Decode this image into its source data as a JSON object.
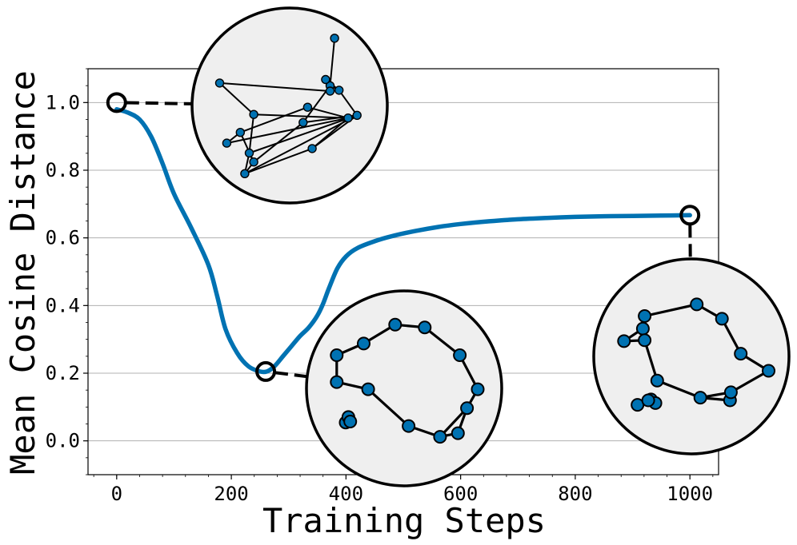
{
  "chart_data": {
    "type": "line",
    "xlabel": "Training Steps",
    "ylabel": "Mean Cosine Distance",
    "xlim": [
      -50,
      1050
    ],
    "ylim": [
      -0.1,
      1.1
    ],
    "xticks": [
      0,
      200,
      400,
      600,
      800,
      1000
    ],
    "xtick_labels": [
      "0",
      "200",
      "400",
      "600",
      "800",
      "1000"
    ],
    "yticks": [
      0.0,
      0.2,
      0.4,
      0.6,
      0.8,
      1.0
    ],
    "ytick_labels": [
      "0.0",
      "0.2",
      "0.4",
      "0.6",
      "0.8",
      "1.0"
    ],
    "grid": "horizontal",
    "series": [
      {
        "color": "#0072B2",
        "x": [
          0,
          20,
          40,
          60,
          80,
          100,
          130,
          160,
          175,
          190,
          210,
          230,
          250,
          262,
          275,
          290,
          305,
          320,
          335,
          350,
          360,
          370,
          385,
          400,
          420,
          450,
          480,
          520,
          560,
          600,
          650,
          700,
          750,
          800,
          850,
          900,
          950,
          1000
        ],
        "y": [
          0.98,
          0.97,
          0.95,
          0.9,
          0.82,
          0.73,
          0.63,
          0.52,
          0.43,
          0.33,
          0.26,
          0.22,
          0.205,
          0.205,
          0.22,
          0.25,
          0.28,
          0.31,
          0.335,
          0.37,
          0.405,
          0.45,
          0.51,
          0.545,
          0.57,
          0.59,
          0.605,
          0.62,
          0.632,
          0.641,
          0.649,
          0.655,
          0.659,
          0.662,
          0.664,
          0.665,
          0.666,
          0.667
        ]
      }
    ],
    "annotations": [
      {
        "x": 0,
        "y": 1.0,
        "graph": {
          "style": "random",
          "nodes": [
            [
              -0.5,
              -0.76
            ],
            [
              -0.45,
              -0.53
            ],
            [
              -0.4,
              -0.63
            ],
            [
              -0.7,
              -0.42
            ],
            [
              -0.55,
              -0.3
            ],
            [
              -0.4,
              -0.1
            ],
            [
              0.25,
              -0.48
            ],
            [
              0.15,
              -0.19
            ],
            [
              0.65,
              -0.14
            ],
            [
              0.75,
              -0.11
            ],
            [
              0.45,
              0.22
            ],
            [
              0.45,
              0.16
            ],
            [
              0.55,
              0.17
            ],
            [
              0.4,
              0.29
            ],
            [
              0.2,
              -0.02
            ],
            [
              0.5,
              0.75
            ],
            [
              -0.78,
              0.25
            ]
          ],
          "edges": [
            [
              0,
              1
            ],
            [
              1,
              2
            ],
            [
              2,
              0
            ],
            [
              0,
              6
            ],
            [
              6,
              9
            ],
            [
              9,
              7
            ],
            [
              7,
              10
            ],
            [
              10,
              15
            ],
            [
              3,
              8
            ],
            [
              8,
              14
            ],
            [
              14,
              4
            ],
            [
              4,
              2
            ],
            [
              1,
              5
            ],
            [
              5,
              8
            ],
            [
              5,
              16
            ],
            [
              16,
              11
            ],
            [
              11,
              13
            ],
            [
              13,
              12
            ],
            [
              12,
              9
            ],
            [
              0,
              9
            ],
            [
              3,
              4
            ],
            [
              2,
              7
            ],
            [
              6,
              8
            ],
            [
              1,
              9
            ],
            [
              10,
              12
            ]
          ]
        }
      },
      {
        "x": 260,
        "y": 0.205,
        "graph": {
          "style": "ring",
          "nodes": [
            [
              -0.65,
              -0.38
            ],
            [
              -0.62,
              -0.32
            ],
            [
              -0.6,
              -0.37
            ],
            [
              -0.75,
              0.07
            ],
            [
              -0.4,
              -0.01
            ],
            [
              0.05,
              -0.42
            ],
            [
              0.4,
              -0.54
            ],
            [
              0.6,
              -0.5
            ],
            [
              0.7,
              -0.22
            ],
            [
              0.82,
              -0.01
            ],
            [
              0.62,
              0.37
            ],
            [
              0.23,
              0.68
            ],
            [
              -0.1,
              0.71
            ],
            [
              -0.45,
              0.5
            ],
            [
              -0.75,
              0.37
            ]
          ],
          "edges": [
            [
              3,
              4
            ],
            [
              4,
              5
            ],
            [
              5,
              6
            ],
            [
              6,
              7
            ],
            [
              7,
              8
            ],
            [
              8,
              9
            ],
            [
              9,
              10
            ],
            [
              10,
              11
            ],
            [
              11,
              12
            ],
            [
              12,
              13
            ],
            [
              13,
              14
            ],
            [
              14,
              3
            ],
            [
              6,
              8
            ]
          ]
        }
      },
      {
        "x": 1000,
        "y": 0.667,
        "graph": {
          "style": "ring",
          "nodes": [
            [
              -0.6,
              -0.54
            ],
            [
              -0.45,
              -0.48
            ],
            [
              -0.4,
              -0.52
            ],
            [
              -0.48,
              -0.49
            ],
            [
              -0.38,
              -0.27
            ],
            [
              0.1,
              -0.46
            ],
            [
              0.43,
              -0.49
            ],
            [
              0.44,
              -0.4
            ],
            [
              0.86,
              -0.16
            ],
            [
              0.55,
              0.03
            ],
            [
              0.34,
              0.42
            ],
            [
              0.06,
              0.58
            ],
            [
              -0.52,
              0.45
            ],
            [
              -0.54,
              0.31
            ],
            [
              -0.75,
              0.17
            ],
            [
              -0.52,
              0.18
            ]
          ],
          "edges": [
            [
              4,
              5
            ],
            [
              5,
              6
            ],
            [
              6,
              7
            ],
            [
              7,
              8
            ],
            [
              8,
              9
            ],
            [
              9,
              10
            ],
            [
              10,
              11
            ],
            [
              11,
              12
            ],
            [
              12,
              13
            ],
            [
              13,
              14
            ],
            [
              14,
              15
            ],
            [
              15,
              4
            ],
            [
              5,
              7
            ],
            [
              12,
              15
            ]
          ]
        }
      }
    ]
  }
}
